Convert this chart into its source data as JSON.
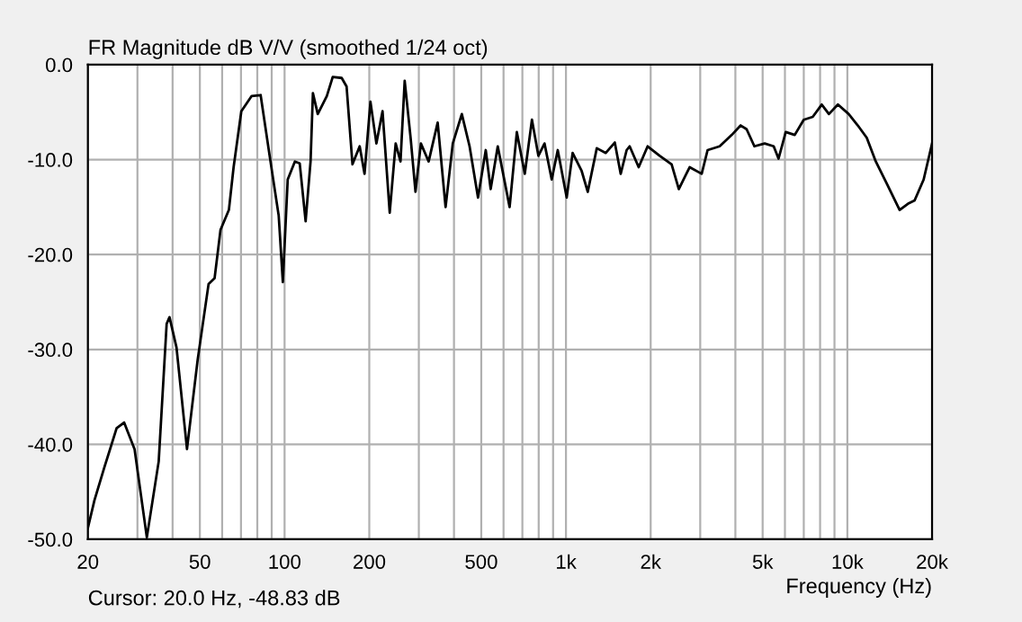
{
  "chart_data": {
    "type": "line",
    "title": "FR Magnitude dB V/V (smoothed 1/24 oct)",
    "xlabel": "Frequency (Hz)",
    "annotations": [
      "Cursor: 20.0 Hz, -48.83 dB"
    ],
    "log": "x",
    "grid": true,
    "legend": false,
    "marker": "none",
    "line_style": "solid",
    "xlim": [
      20,
      20000
    ],
    "ylim": [
      -50,
      0
    ],
    "xticks": [
      20,
      {
        "value": 30,
        "label": null
      },
      {
        "value": 40,
        "label": null
      },
      50,
      {
        "value": 60,
        "label": null
      },
      {
        "value": 70,
        "label": null
      },
      {
        "value": 80,
        "label": null
      },
      {
        "value": 90,
        "label": null
      },
      100,
      200,
      {
        "value": 300,
        "label": null
      },
      {
        "value": 400,
        "label": null
      },
      500,
      {
        "value": 600,
        "label": null
      },
      {
        "value": 700,
        "label": null
      },
      {
        "value": 800,
        "label": null
      },
      {
        "value": 900,
        "label": null
      },
      {
        "value": 1000,
        "label": "1k"
      },
      {
        "value": 2000,
        "label": "2k"
      },
      {
        "value": 3000,
        "label": null
      },
      {
        "value": 4000,
        "label": null
      },
      {
        "value": 5000,
        "label": "5k"
      },
      {
        "value": 6000,
        "label": null
      },
      {
        "value": 7000,
        "label": null
      },
      {
        "value": 8000,
        "label": null
      },
      {
        "value": 9000,
        "label": null
      },
      {
        "value": 10000,
        "label": "10k"
      },
      {
        "value": 20000,
        "label": "20k"
      }
    ],
    "yticks": [
      {
        "value": -50,
        "label": "-50.0"
      },
      {
        "value": -40,
        "label": "-40.0"
      },
      {
        "value": -30,
        "label": "-30.0"
      },
      {
        "value": -20,
        "label": "-20.0"
      },
      {
        "value": -10,
        "label": "-10.0"
      },
      {
        "value": 0,
        "label": "0.0"
      }
    ],
    "series": [
      {
        "color": "#000000",
        "x": [
          20,
          21.1,
          22.9,
          25.3,
          26.9,
          29.3,
          32.4,
          35.7,
          38.1,
          39.0,
          41.3,
          45.0,
          49.1,
          53.7,
          56.4,
          59.2,
          63.4,
          65.9,
          70.2,
          76.4,
          82.2,
          88.5,
          95.3,
          98.6,
          102.6,
          108.8,
          113.2,
          118.8,
          123.7,
          126.1,
          131.2,
          141.3,
          148.3,
          159.6,
          166.1,
          174.3,
          184.9,
          192.4,
          201.9,
          212.0,
          222.9,
          236.4,
          248.2,
          258.2,
          267.2,
          280.5,
          291.9,
          305.1,
          325.1,
          350.0,
          373.4,
          396.1,
          426.5,
          454.4,
          486.9,
          518.7,
          540.0,
          572.3,
          630.6,
          669.0,
          714.0,
          757.0,
          798.0,
          839.0,
          890.0,
          935.0,
          1006,
          1056,
          1137,
          1195,
          1287,
          1385,
          1491,
          1565,
          1643,
          1684,
          1813,
          1951,
          2154,
          2374,
          2518,
          2751,
          3036,
          3187,
          3518,
          3883,
          4177,
          4385,
          4673,
          5084,
          5473,
          5695,
          6040,
          6501,
          6998,
          7533,
          8109,
          8600,
          9257,
          10110,
          10890,
          11720,
          12620,
          13900,
          15340,
          16520,
          17340,
          18670,
          20000
        ],
        "values": [
          -48.8,
          -45.9,
          -42.4,
          -38.3,
          -37.7,
          -40.5,
          -49.8,
          -41.8,
          -27.3,
          -26.6,
          -29.8,
          -40.5,
          -31.1,
          -23.1,
          -22.5,
          -17.4,
          -15.3,
          -10.8,
          -4.9,
          -3.3,
          -3.2,
          -9.6,
          -15.9,
          -22.9,
          -12.1,
          -10.2,
          -10.4,
          -16.5,
          -10.2,
          -3.0,
          -5.2,
          -3.3,
          -1.3,
          -1.4,
          -2.3,
          -10.5,
          -8.6,
          -11.5,
          -3.9,
          -8.3,
          -4.9,
          -15.6,
          -8.3,
          -10.2,
          -1.7,
          -7.7,
          -13.4,
          -8.3,
          -10.2,
          -6.1,
          -15.0,
          -8.3,
          -5.2,
          -8.6,
          -14.0,
          -9.0,
          -13.1,
          -8.6,
          -15.0,
          -7.1,
          -11.5,
          -5.8,
          -9.6,
          -8.3,
          -12.1,
          -9.0,
          -14.0,
          -9.3,
          -11.2,
          -13.4,
          -8.8,
          -9.3,
          -8.2,
          -11.5,
          -9.0,
          -8.6,
          -10.8,
          -8.6,
          -9.6,
          -10.5,
          -13.1,
          -10.8,
          -11.5,
          -9.0,
          -8.6,
          -7.4,
          -6.4,
          -6.8,
          -8.6,
          -8.3,
          -8.6,
          -9.9,
          -7.1,
          -7.4,
          -5.8,
          -5.5,
          -4.2,
          -5.2,
          -4.2,
          -5.2,
          -6.4,
          -7.7,
          -10.2,
          -12.7,
          -15.3,
          -14.6,
          -14.3,
          -12.1,
          -8.3
        ]
      }
    ]
  }
}
